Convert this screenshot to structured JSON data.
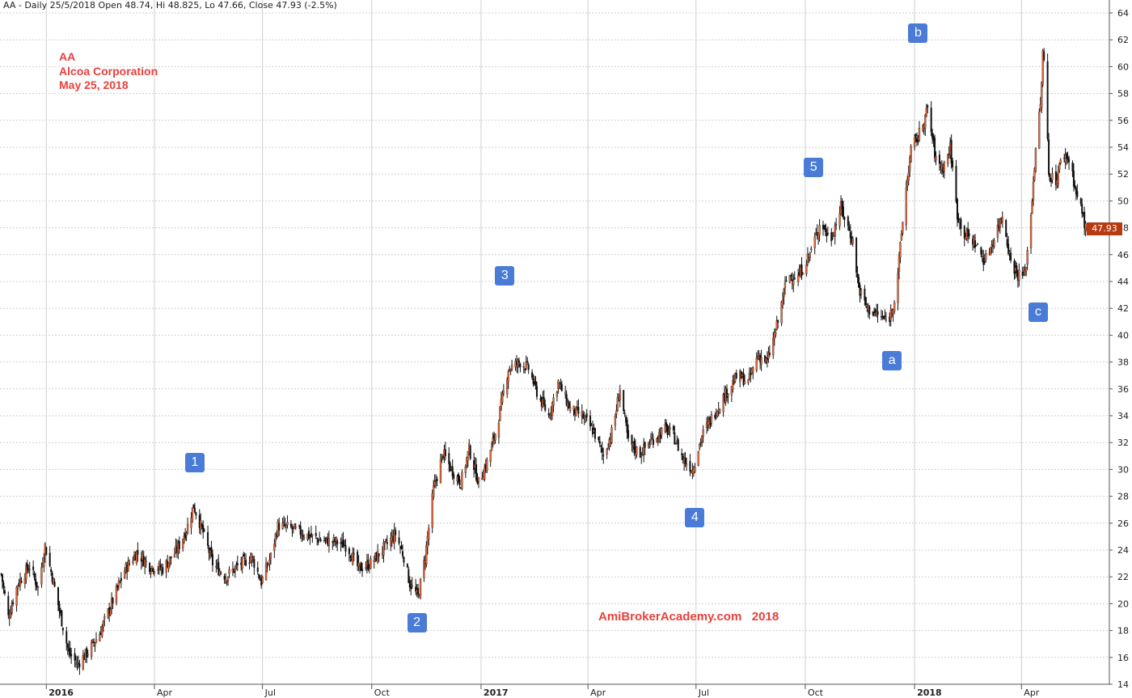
{
  "header": "AA - Daily 25/5/2018 Open 48.74, Hi 48.825, Lo 47.66, Close 47.93 (-2.5%)",
  "title_lines": [
    "AA",
    "Alcoa Corporation",
    "May 25, 2018"
  ],
  "watermark": "AmiBrokerAcademy.com   2018",
  "last_price_label": "47.93",
  "colors": {
    "up": "#e0683c",
    "down": "#111111",
    "grid": "#cfcfcf",
    "label_red": "#e8403c",
    "wave_box": "#4a7bd6",
    "price_tag": "#b83a10"
  },
  "wave_labels": [
    {
      "label": "1",
      "date": "2016-05-05",
      "price": 30.5
    },
    {
      "label": "2",
      "date": "2016-11-08",
      "price": 18.6
    },
    {
      "label": "3",
      "date": "2017-01-21",
      "price": 44.4
    },
    {
      "label": "4",
      "date": "2017-06-30",
      "price": 26.4
    },
    {
      "label": "5",
      "date": "2017-10-08",
      "price": 52.5
    },
    {
      "label": "a",
      "date": "2017-12-13",
      "price": 38.1
    },
    {
      "label": "b",
      "date": "2018-01-04",
      "price": 62.5
    },
    {
      "label": "c",
      "date": "2018-04-15",
      "price": 41.7
    }
  ],
  "chart_data": {
    "type": "candlestick",
    "title": "AA - Daily 25/5/2018 Open 48.74, Hi 48.825, Lo 47.66, Close 47.93 (-2.5%)",
    "x_range": [
      "2015-11-23",
      "2018-06-14"
    ],
    "y_range": [
      14,
      64
    ],
    "y_axis_side": "right",
    "y_ticks": [
      14,
      16,
      18,
      20,
      22,
      24,
      26,
      28,
      30,
      32,
      34,
      36,
      38,
      40,
      42,
      44,
      46,
      48,
      50,
      52,
      54,
      56,
      58,
      60,
      62,
      64
    ],
    "x_ticks": [
      {
        "label": "2016",
        "date": "2016-01-01",
        "bold": true
      },
      {
        "label": "Apr",
        "date": "2016-04-01"
      },
      {
        "label": "Jul",
        "date": "2016-07-01"
      },
      {
        "label": "Oct",
        "date": "2016-10-01"
      },
      {
        "label": "2017",
        "date": "2017-01-01",
        "bold": true
      },
      {
        "label": "Apr",
        "date": "2017-04-01"
      },
      {
        "label": "Jul",
        "date": "2017-07-01"
      },
      {
        "label": "Oct",
        "date": "2017-10-01"
      },
      {
        "label": "2018",
        "date": "2018-01-01",
        "bold": true
      },
      {
        "label": "Apr",
        "date": "2018-04-01"
      }
    ],
    "grid": true,
    "approx_close_path": [
      [
        "2015-11-24",
        22.2
      ],
      [
        "2015-11-30",
        19.0
      ],
      [
        "2015-12-08",
        21.5
      ],
      [
        "2015-12-18",
        22.8
      ],
      [
        "2015-12-25",
        21.2
      ],
      [
        "2015-12-31",
        24.3
      ],
      [
        "2016-01-06",
        22.0
      ],
      [
        "2016-01-12",
        19.5
      ],
      [
        "2016-01-20",
        16.3
      ],
      [
        "2016-01-27",
        15.5
      ],
      [
        "2016-02-05",
        16.4
      ],
      [
        "2016-02-15",
        17.8
      ],
      [
        "2016-02-25",
        20.0
      ],
      [
        "2016-03-07",
        22.5
      ],
      [
        "2016-03-17",
        23.8
      ],
      [
        "2016-03-28",
        22.8
      ],
      [
        "2016-04-08",
        22.6
      ],
      [
        "2016-04-20",
        24.0
      ],
      [
        "2016-04-28",
        25.5
      ],
      [
        "2016-05-04",
        27.3
      ],
      [
        "2016-05-12",
        25.3
      ],
      [
        "2016-05-20",
        23.0
      ],
      [
        "2016-05-31",
        22.0
      ],
      [
        "2016-06-10",
        22.8
      ],
      [
        "2016-06-22",
        23.5
      ],
      [
        "2016-06-30",
        21.6
      ],
      [
        "2016-07-08",
        23.5
      ],
      [
        "2016-07-14",
        25.8
      ],
      [
        "2016-07-22",
        25.7
      ],
      [
        "2016-08-05",
        25.2
      ],
      [
        "2016-08-20",
        24.7
      ],
      [
        "2016-09-01",
        24.6
      ],
      [
        "2016-09-10",
        24.3
      ],
      [
        "2016-09-20",
        22.6
      ],
      [
        "2016-09-30",
        23.0
      ],
      [
        "2016-10-10",
        24.0
      ],
      [
        "2016-10-21",
        25.2
      ],
      [
        "2016-10-28",
        23.5
      ],
      [
        "2016-11-02",
        21.5
      ],
      [
        "2016-11-09",
        20.5
      ],
      [
        "2016-11-15",
        23.5
      ],
      [
        "2016-11-22",
        28.5
      ],
      [
        "2016-11-30",
        31.2
      ],
      [
        "2016-12-07",
        30.0
      ],
      [
        "2016-12-15",
        29.0
      ],
      [
        "2016-12-22",
        31.5
      ],
      [
        "2016-12-30",
        29.0
      ],
      [
        "2017-01-06",
        30.5
      ],
      [
        "2017-01-14",
        33.0
      ],
      [
        "2017-01-24",
        37.5
      ],
      [
        "2017-02-03",
        38.0
      ],
      [
        "2017-02-10",
        37.5
      ],
      [
        "2017-02-18",
        35.5
      ],
      [
        "2017-02-27",
        34.0
      ],
      [
        "2017-03-07",
        36.5
      ],
      [
        "2017-03-17",
        34.5
      ],
      [
        "2017-03-27",
        34.0
      ],
      [
        "2017-04-06",
        32.8
      ],
      [
        "2017-04-14",
        31.0
      ],
      [
        "2017-04-22",
        33.0
      ],
      [
        "2017-04-28",
        36.0
      ],
      [
        "2017-05-05",
        32.0
      ],
      [
        "2017-05-15",
        31.2
      ],
      [
        "2017-05-25",
        32.2
      ],
      [
        "2017-06-05",
        33.0
      ],
      [
        "2017-06-12",
        32.5
      ],
      [
        "2017-06-20",
        30.8
      ],
      [
        "2017-06-28",
        30.0
      ],
      [
        "2017-07-06",
        32.5
      ],
      [
        "2017-07-14",
        33.8
      ],
      [
        "2017-07-25",
        35.5
      ],
      [
        "2017-08-05",
        37.0
      ],
      [
        "2017-08-14",
        36.5
      ],
      [
        "2017-08-22",
        38.5
      ],
      [
        "2017-08-30",
        38.0
      ],
      [
        "2017-09-08",
        41.0
      ],
      [
        "2017-09-16",
        44.5
      ],
      [
        "2017-09-25",
        44.3
      ],
      [
        "2017-10-06",
        46.3
      ],
      [
        "2017-10-14",
        48.5
      ],
      [
        "2017-10-22",
        47.0
      ],
      [
        "2017-10-31",
        49.5
      ],
      [
        "2017-11-06",
        48.0
      ],
      [
        "2017-11-10",
        47.0
      ],
      [
        "2017-11-15",
        43.5
      ],
      [
        "2017-11-22",
        42.0
      ],
      [
        "2017-12-01",
        41.5
      ],
      [
        "2017-12-10",
        41.0
      ],
      [
        "2017-12-16",
        43.0
      ],
      [
        "2017-12-20",
        46.5
      ],
      [
        "2017-12-23",
        49.5
      ],
      [
        "2017-12-29",
        53.8
      ],
      [
        "2018-01-05",
        55.0
      ],
      [
        "2018-01-12",
        56.8
      ],
      [
        "2018-01-19",
        53.0
      ],
      [
        "2018-01-25",
        52.5
      ],
      [
        "2018-01-31",
        54.0
      ],
      [
        "2018-02-06",
        49.0
      ],
      [
        "2018-02-12",
        47.5
      ],
      [
        "2018-02-20",
        47.0
      ],
      [
        "2018-03-01",
        45.5
      ],
      [
        "2018-03-08",
        47.0
      ],
      [
        "2018-03-16",
        49.0
      ],
      [
        "2018-03-23",
        45.5
      ],
      [
        "2018-03-29",
        44.5
      ],
      [
        "2018-04-04",
        44.5
      ],
      [
        "2018-04-09",
        49.0
      ],
      [
        "2018-04-13",
        54.0
      ],
      [
        "2018-04-17",
        57.0
      ],
      [
        "2018-04-19",
        61.0
      ],
      [
        "2018-04-21",
        59.5
      ],
      [
        "2018-04-24",
        52.0
      ],
      [
        "2018-04-30",
        51.5
      ],
      [
        "2018-05-06",
        53.5
      ],
      [
        "2018-05-12",
        53.0
      ],
      [
        "2018-05-17",
        50.5
      ],
      [
        "2018-05-22",
        49.2
      ],
      [
        "2018-05-25",
        47.93
      ]
    ],
    "last_close": 47.93
  }
}
